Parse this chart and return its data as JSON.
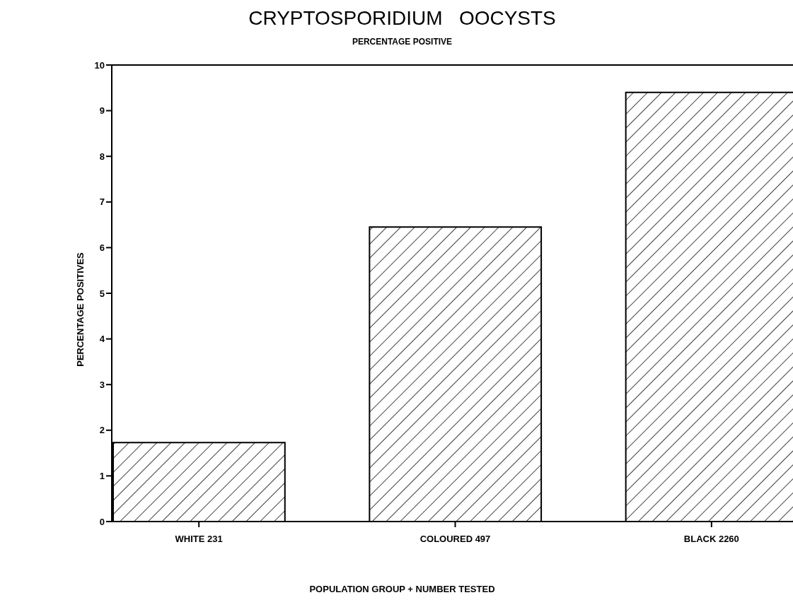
{
  "chart_data": {
    "type": "bar",
    "title": "CRYPTOSPORIDIUM   OOCYSTS",
    "subtitle": "PERCENTAGE POSITIVE",
    "xlabel": "POPULATION GROUP + NUMBER TESTED",
    "ylabel": "PERCENTAGE POSITIVES",
    "categories": [
      "WHITE 231",
      "COLOURED 497",
      "BLACK 2260"
    ],
    "values": [
      1.73,
      6.45,
      9.4
    ],
    "color": "#000000",
    "ylim": [
      0,
      10
    ],
    "yticks": [
      0,
      1,
      2,
      3,
      4,
      5,
      6,
      7,
      8,
      9,
      10
    ],
    "grid": false,
    "legend": false
  }
}
